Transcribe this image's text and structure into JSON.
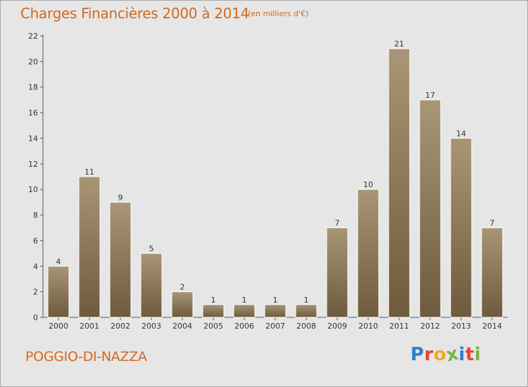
{
  "header": {
    "title": "Charges Financières 2000 à 2014",
    "subtitle": "(en milliers d'€)"
  },
  "footer": {
    "commune": "POGGIO-DI-NAZZA",
    "logo_letters": [
      "P",
      "r",
      "o",
      "x",
      "i",
      "t",
      "i"
    ],
    "logo_colors": [
      "#2e7fd0",
      "#e8442e",
      "#f5a623",
      "#7cb342",
      "#2e7fd0",
      "#e8442e",
      "#7cb342"
    ]
  },
  "colors": {
    "bar_top": "#a89676",
    "bar_bottom": "#6e5a3c",
    "accent": "#d2691e",
    "plot_bg": "#e6e6e6"
  },
  "chart_data": {
    "type": "bar",
    "title": "Charges Financières 2000 à 2014",
    "subtitle": "(en milliers d'€)",
    "categories": [
      "2000",
      "2001",
      "2002",
      "2003",
      "2004",
      "2005",
      "2006",
      "2007",
      "2008",
      "2009",
      "2010",
      "2011",
      "2012",
      "2013",
      "2014"
    ],
    "values": [
      4,
      11,
      9,
      5,
      2,
      1,
      1,
      1,
      1,
      7,
      10,
      21,
      17,
      14,
      7
    ],
    "y_ticks": [
      0,
      2,
      4,
      6,
      8,
      10,
      12,
      14,
      16,
      18,
      20,
      22
    ],
    "ylim": [
      0,
      22
    ],
    "xlabel": "",
    "ylabel": "",
    "grid": false,
    "data_labels": true
  }
}
